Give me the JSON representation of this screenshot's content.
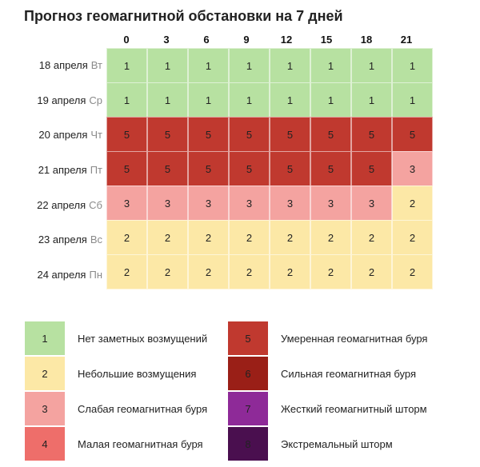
{
  "chart_data": {
    "type": "heatmap",
    "title": "Прогноз геомагнитной обстановки на 7 дней",
    "columns": [
      "0",
      "3",
      "6",
      "9",
      "12",
      "15",
      "18",
      "21"
    ],
    "rows": [
      {
        "date": "18 апреля",
        "dow": "Вт",
        "values": [
          1,
          1,
          1,
          1,
          1,
          1,
          1,
          1
        ]
      },
      {
        "date": "19 апреля",
        "dow": "Ср",
        "values": [
          1,
          1,
          1,
          1,
          1,
          1,
          1,
          1
        ]
      },
      {
        "date": "20 апреля",
        "dow": "Чт",
        "values": [
          5,
          5,
          5,
          5,
          5,
          5,
          5,
          5
        ]
      },
      {
        "date": "21 апреля",
        "dow": "Пт",
        "values": [
          5,
          5,
          5,
          5,
          5,
          5,
          5,
          3
        ]
      },
      {
        "date": "22 апреля",
        "dow": "Сб",
        "values": [
          3,
          3,
          3,
          3,
          3,
          3,
          3,
          2
        ]
      },
      {
        "date": "23 апреля",
        "dow": "Вс",
        "values": [
          2,
          2,
          2,
          2,
          2,
          2,
          2,
          2
        ]
      },
      {
        "date": "24 апреля",
        "dow": "Пн",
        "values": [
          2,
          2,
          2,
          2,
          2,
          2,
          2,
          2
        ]
      }
    ],
    "legend": [
      {
        "level": "1",
        "label": "Нет заметных возмущений",
        "color": "#b7e1a1"
      },
      {
        "level": "2",
        "label": "Небольшие возмущения",
        "color": "#fce8a6"
      },
      {
        "level": "3",
        "label": "Слабая геомагнитная буря",
        "color": "#f4a3a0"
      },
      {
        "level": "4",
        "label": "Малая геомагнитная буря",
        "color": "#ee6e6a"
      },
      {
        "level": "5",
        "label": "Умеренная геомагнитная буря",
        "color": "#c0392f"
      },
      {
        "level": "6",
        "label": "Сильная геомагнитная буря",
        "color": "#9a1f17"
      },
      {
        "level": "7",
        "label": "Жесткий геомагнитный шторм",
        "color": "#8e2a98"
      },
      {
        "level": "8",
        "label": "Экстремальный шторм",
        "color": "#4a0f4f"
      }
    ]
  }
}
